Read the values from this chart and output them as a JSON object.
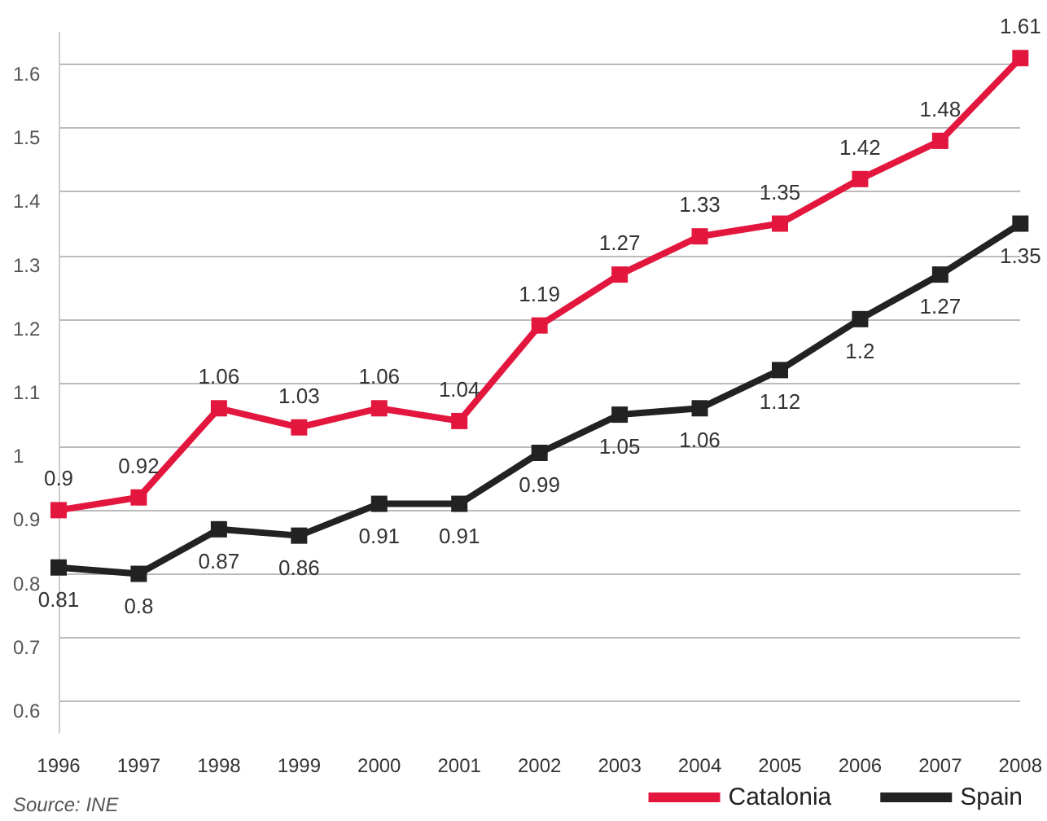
{
  "chart_data": {
    "type": "line",
    "categories": [
      "1996",
      "1997",
      "1998",
      "1999",
      "2000",
      "2001",
      "2002",
      "2003",
      "2004",
      "2005",
      "2006",
      "2007",
      "2008"
    ],
    "series": [
      {
        "name": "Catalonia",
        "color": "#e3173e",
        "values": [
          0.9,
          0.92,
          1.06,
          1.03,
          1.06,
          1.04,
          1.19,
          1.27,
          1.33,
          1.35,
          1.42,
          1.48,
          1.61
        ]
      },
      {
        "name": "Spain",
        "color": "#222222",
        "values": [
          0.81,
          0.8,
          0.87,
          0.86,
          0.91,
          0.91,
          0.99,
          1.05,
          1.06,
          1.12,
          1.2,
          1.27,
          1.35
        ]
      }
    ],
    "ylim": [
      0.55,
      1.65
    ],
    "yticks": [
      0.6,
      0.7,
      0.8,
      0.9,
      1,
      1.1,
      1.2,
      1.3,
      1.4,
      1.5,
      1.6
    ],
    "grid": "y",
    "legend": "bottom right",
    "marker": "square",
    "line_style": "solid",
    "data_labels": true,
    "annotations": [
      "Source: INE"
    ]
  }
}
